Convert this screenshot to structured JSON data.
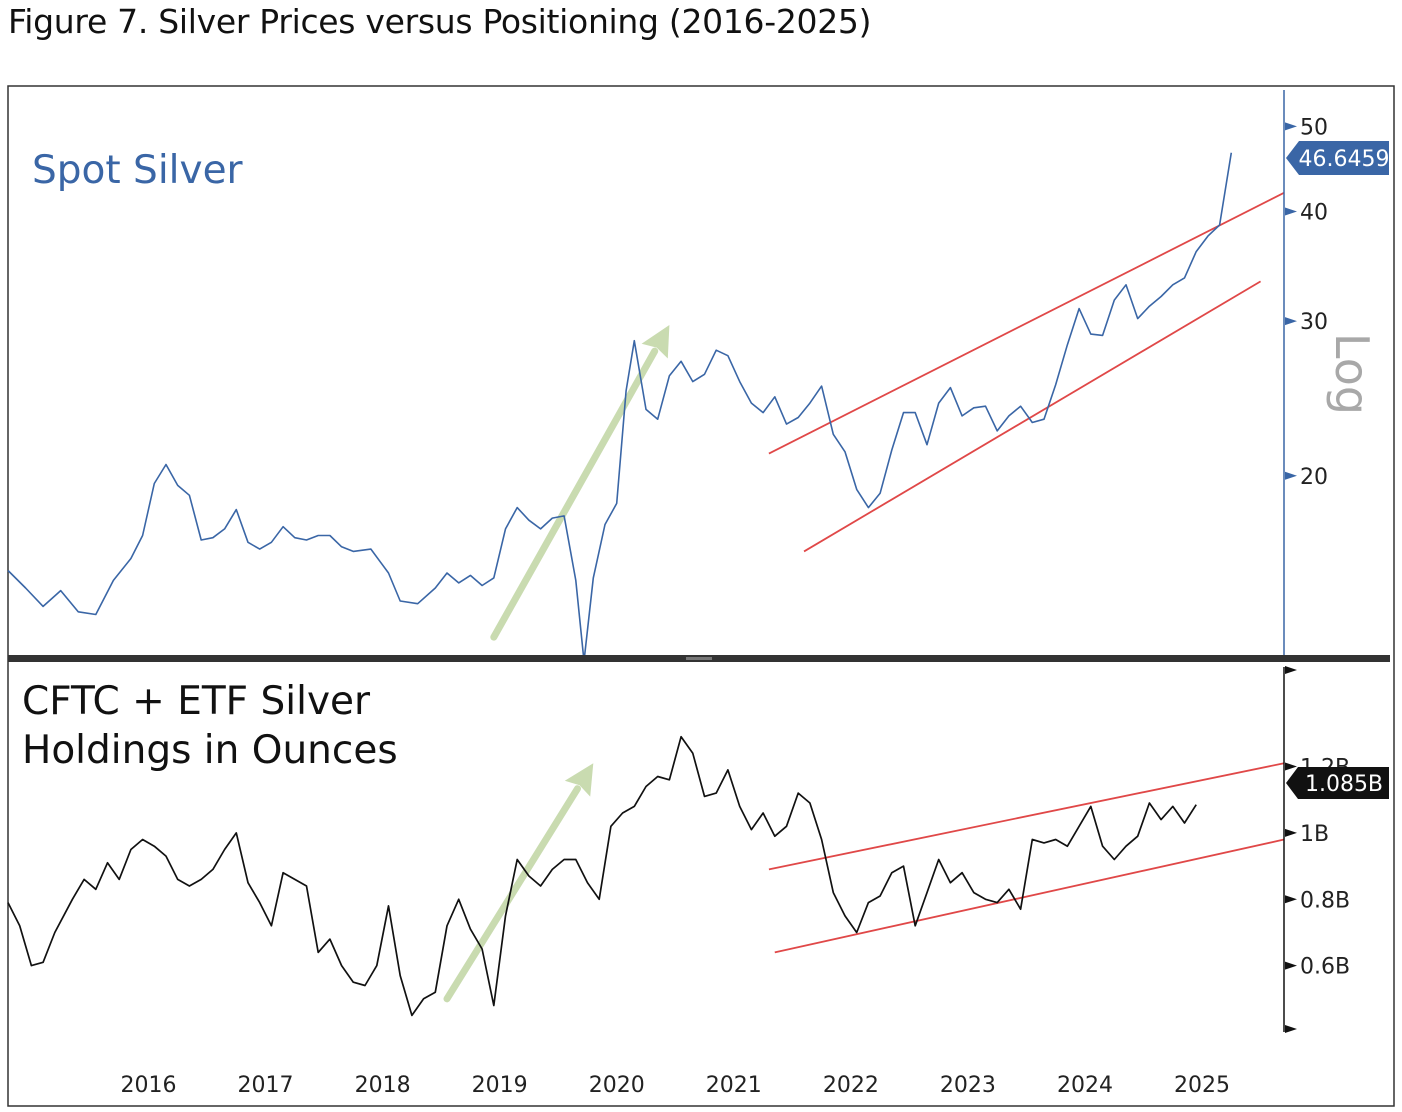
{
  "figure_title": "Figure 7. Silver Prices versus Positioning (2016-2025)",
  "colors": {
    "silver_line": "#3a66a6",
    "holdings_line": "#111111",
    "channel": "#e04848",
    "arrow": "#c9dbb0",
    "axis_blue": "#3a66a6",
    "log_text": "#a8a8a8",
    "divider": "#333333"
  },
  "chart_data": [
    {
      "type": "line",
      "title": "Spot Silver",
      "scale": "log",
      "scale_label": "Log",
      "ylim": [
        12.5,
        55
      ],
      "y_ticks": [
        {
          "value": 20,
          "label": "20"
        },
        {
          "value": 30,
          "label": "30"
        },
        {
          "value": 40,
          "label": "40"
        },
        {
          "value": 50,
          "label": "50"
        }
      ],
      "last_value": 46.6459,
      "last_value_label": "46.6459",
      "x_years": [
        "2016",
        "2017",
        "2018",
        "2019",
        "2020",
        "2021",
        "2022",
        "2023",
        "2024",
        "2025"
      ],
      "series": [
        {
          "name": "Spot Silver",
          "points": [
            [
              2015.3,
              15.6
            ],
            [
              2015.45,
              14.9
            ],
            [
              2015.6,
              14.2
            ],
            [
              2015.75,
              14.8
            ],
            [
              2015.9,
              14.0
            ],
            [
              2016.05,
              13.9
            ],
            [
              2016.2,
              15.2
            ],
            [
              2016.35,
              16.1
            ],
            [
              2016.45,
              17.1
            ],
            [
              2016.55,
              19.6
            ],
            [
              2016.65,
              20.6
            ],
            [
              2016.75,
              19.5
            ],
            [
              2016.85,
              19.0
            ],
            [
              2016.95,
              16.9
            ],
            [
              2017.05,
              17.0
            ],
            [
              2017.15,
              17.4
            ],
            [
              2017.25,
              18.3
            ],
            [
              2017.35,
              16.8
            ],
            [
              2017.45,
              16.5
            ],
            [
              2017.55,
              16.8
            ],
            [
              2017.65,
              17.5
            ],
            [
              2017.75,
              17.0
            ],
            [
              2017.85,
              16.9
            ],
            [
              2017.95,
              17.1
            ],
            [
              2018.05,
              17.1
            ],
            [
              2018.15,
              16.6
            ],
            [
              2018.25,
              16.4
            ],
            [
              2018.4,
              16.5
            ],
            [
              2018.55,
              15.5
            ],
            [
              2018.65,
              14.4
            ],
            [
              2018.8,
              14.3
            ],
            [
              2018.95,
              14.9
            ],
            [
              2019.05,
              15.5
            ],
            [
              2019.15,
              15.1
            ],
            [
              2019.25,
              15.4
            ],
            [
              2019.35,
              15.0
            ],
            [
              2019.45,
              15.3
            ],
            [
              2019.55,
              17.4
            ],
            [
              2019.65,
              18.4
            ],
            [
              2019.75,
              17.8
            ],
            [
              2019.85,
              17.4
            ],
            [
              2019.95,
              17.9
            ],
            [
              2020.05,
              18.0
            ],
            [
              2020.15,
              15.2
            ],
            [
              2020.22,
              12.3
            ],
            [
              2020.3,
              15.3
            ],
            [
              2020.4,
              17.6
            ],
            [
              2020.5,
              18.6
            ],
            [
              2020.58,
              25.0
            ],
            [
              2020.65,
              28.5
            ],
            [
              2020.75,
              23.8
            ],
            [
              2020.85,
              23.2
            ],
            [
              2020.95,
              26.0
            ],
            [
              2021.05,
              27.0
            ],
            [
              2021.15,
              25.6
            ],
            [
              2021.25,
              26.1
            ],
            [
              2021.35,
              27.8
            ],
            [
              2021.45,
              27.4
            ],
            [
              2021.55,
              25.6
            ],
            [
              2021.65,
              24.2
            ],
            [
              2021.75,
              23.6
            ],
            [
              2021.85,
              24.6
            ],
            [
              2021.95,
              22.9
            ],
            [
              2022.05,
              23.3
            ],
            [
              2022.15,
              24.2
            ],
            [
              2022.25,
              25.3
            ],
            [
              2022.35,
              22.3
            ],
            [
              2022.45,
              21.3
            ],
            [
              2022.55,
              19.3
            ],
            [
              2022.65,
              18.4
            ],
            [
              2022.75,
              19.1
            ],
            [
              2022.85,
              21.4
            ],
            [
              2022.95,
              23.6
            ],
            [
              2023.05,
              23.6
            ],
            [
              2023.15,
              21.7
            ],
            [
              2023.25,
              24.2
            ],
            [
              2023.35,
              25.2
            ],
            [
              2023.45,
              23.4
            ],
            [
              2023.55,
              23.9
            ],
            [
              2023.65,
              24.0
            ],
            [
              2023.75,
              22.5
            ],
            [
              2023.85,
              23.4
            ],
            [
              2023.95,
              24.0
            ],
            [
              2024.05,
              23.0
            ],
            [
              2024.15,
              23.2
            ],
            [
              2024.25,
              25.4
            ],
            [
              2024.35,
              28.2
            ],
            [
              2024.45,
              31.0
            ],
            [
              2024.55,
              29.0
            ],
            [
              2024.65,
              28.9
            ],
            [
              2024.75,
              31.7
            ],
            [
              2024.85,
              33.0
            ],
            [
              2024.95,
              30.2
            ],
            [
              2025.05,
              31.2
            ],
            [
              2025.15,
              32.0
            ],
            [
              2025.25,
              33.0
            ],
            [
              2025.35,
              33.6
            ],
            [
              2025.45,
              36.0
            ],
            [
              2025.55,
              37.5
            ],
            [
              2025.65,
              38.6
            ],
            [
              2025.75,
              46.6459
            ]
          ]
        }
      ],
      "channel_lines": [
        {
          "from": [
            2021.8,
            21.2
          ],
          "to": [
            2026.2,
            42.0
          ]
        },
        {
          "from": [
            2022.1,
            16.4
          ],
          "to": [
            2026.0,
            33.3
          ]
        }
      ],
      "arrow": {
        "from": [
          2019.45,
          13.1
        ],
        "to": [
          2020.95,
          29.7
        ]
      }
    },
    {
      "type": "line",
      "title": "CFTC + ETF Silver Holdings in Ounces",
      "title_lines": [
        "CFTC + ETF Silver",
        "Holdings in Ounces"
      ],
      "unit": "billion oz",
      "ylim": [
        0.4,
        1.5
      ],
      "y_ticks": [
        {
          "value": 0.6,
          "label": "0.6B"
        },
        {
          "value": 0.8,
          "label": "0.8B"
        },
        {
          "value": 1.0,
          "label": "1B"
        },
        {
          "value": 1.2,
          "label": "1.2B"
        }
      ],
      "last_value": 1.085,
      "last_value_label": "1.085B",
      "series": [
        {
          "name": "CFTC + ETF Silver Holdings",
          "points": [
            [
              2015.3,
              0.79
            ],
            [
              2015.4,
              0.72
            ],
            [
              2015.5,
              0.6
            ],
            [
              2015.6,
              0.61
            ],
            [
              2015.7,
              0.7
            ],
            [
              2015.85,
              0.8
            ],
            [
              2015.95,
              0.86
            ],
            [
              2016.05,
              0.83
            ],
            [
              2016.15,
              0.91
            ],
            [
              2016.25,
              0.86
            ],
            [
              2016.35,
              0.95
            ],
            [
              2016.45,
              0.98
            ],
            [
              2016.55,
              0.96
            ],
            [
              2016.65,
              0.93
            ],
            [
              2016.75,
              0.86
            ],
            [
              2016.85,
              0.84
            ],
            [
              2016.95,
              0.86
            ],
            [
              2017.05,
              0.89
            ],
            [
              2017.15,
              0.95
            ],
            [
              2017.25,
              1.0
            ],
            [
              2017.35,
              0.85
            ],
            [
              2017.45,
              0.79
            ],
            [
              2017.55,
              0.72
            ],
            [
              2017.65,
              0.88
            ],
            [
              2017.75,
              0.86
            ],
            [
              2017.85,
              0.84
            ],
            [
              2017.95,
              0.64
            ],
            [
              2018.05,
              0.68
            ],
            [
              2018.15,
              0.6
            ],
            [
              2018.25,
              0.55
            ],
            [
              2018.35,
              0.54
            ],
            [
              2018.45,
              0.6
            ],
            [
              2018.55,
              0.78
            ],
            [
              2018.65,
              0.57
            ],
            [
              2018.75,
              0.45
            ],
            [
              2018.85,
              0.5
            ],
            [
              2018.95,
              0.52
            ],
            [
              2019.05,
              0.72
            ],
            [
              2019.15,
              0.8
            ],
            [
              2019.25,
              0.71
            ],
            [
              2019.35,
              0.65
            ],
            [
              2019.45,
              0.48
            ],
            [
              2019.55,
              0.75
            ],
            [
              2019.65,
              0.92
            ],
            [
              2019.75,
              0.87
            ],
            [
              2019.85,
              0.84
            ],
            [
              2019.95,
              0.89
            ],
            [
              2020.05,
              0.92
            ],
            [
              2020.15,
              0.92
            ],
            [
              2020.25,
              0.85
            ],
            [
              2020.35,
              0.8
            ],
            [
              2020.45,
              1.02
            ],
            [
              2020.55,
              1.06
            ],
            [
              2020.65,
              1.08
            ],
            [
              2020.75,
              1.14
            ],
            [
              2020.85,
              1.17
            ],
            [
              2020.95,
              1.16
            ],
            [
              2021.05,
              1.29
            ],
            [
              2021.15,
              1.24
            ],
            [
              2021.25,
              1.11
            ],
            [
              2021.35,
              1.12
            ],
            [
              2021.45,
              1.19
            ],
            [
              2021.55,
              1.08
            ],
            [
              2021.65,
              1.01
            ],
            [
              2021.75,
              1.06
            ],
            [
              2021.85,
              0.99
            ],
            [
              2021.95,
              1.02
            ],
            [
              2022.05,
              1.12
            ],
            [
              2022.15,
              1.09
            ],
            [
              2022.25,
              0.98
            ],
            [
              2022.35,
              0.82
            ],
            [
              2022.45,
              0.75
            ],
            [
              2022.55,
              0.7
            ],
            [
              2022.65,
              0.79
            ],
            [
              2022.75,
              0.81
            ],
            [
              2022.85,
              0.88
            ],
            [
              2022.95,
              0.9
            ],
            [
              2023.05,
              0.72
            ],
            [
              2023.15,
              0.82
            ],
            [
              2023.25,
              0.92
            ],
            [
              2023.35,
              0.85
            ],
            [
              2023.45,
              0.88
            ],
            [
              2023.55,
              0.82
            ],
            [
              2023.65,
              0.8
            ],
            [
              2023.75,
              0.79
            ],
            [
              2023.85,
              0.83
            ],
            [
              2023.95,
              0.77
            ],
            [
              2024.05,
              0.98
            ],
            [
              2024.15,
              0.97
            ],
            [
              2024.25,
              0.98
            ],
            [
              2024.35,
              0.96
            ],
            [
              2024.45,
              1.02
            ],
            [
              2024.55,
              1.08
            ],
            [
              2024.65,
              0.96
            ],
            [
              2024.75,
              0.92
            ],
            [
              2024.85,
              0.96
            ],
            [
              2024.95,
              0.99
            ],
            [
              2025.05,
              1.09
            ],
            [
              2025.15,
              1.04
            ],
            [
              2025.25,
              1.08
            ],
            [
              2025.35,
              1.03
            ],
            [
              2025.45,
              1.085
            ]
          ]
        }
      ],
      "channel_lines": [
        {
          "from": [
            2021.8,
            0.89
          ],
          "to": [
            2026.2,
            1.21
          ]
        },
        {
          "from": [
            2021.85,
            0.64
          ],
          "to": [
            2026.2,
            0.98
          ]
        }
      ],
      "arrow": {
        "from": [
          2019.05,
          0.5
        ],
        "to": [
          2020.3,
          1.21
        ]
      }
    }
  ]
}
